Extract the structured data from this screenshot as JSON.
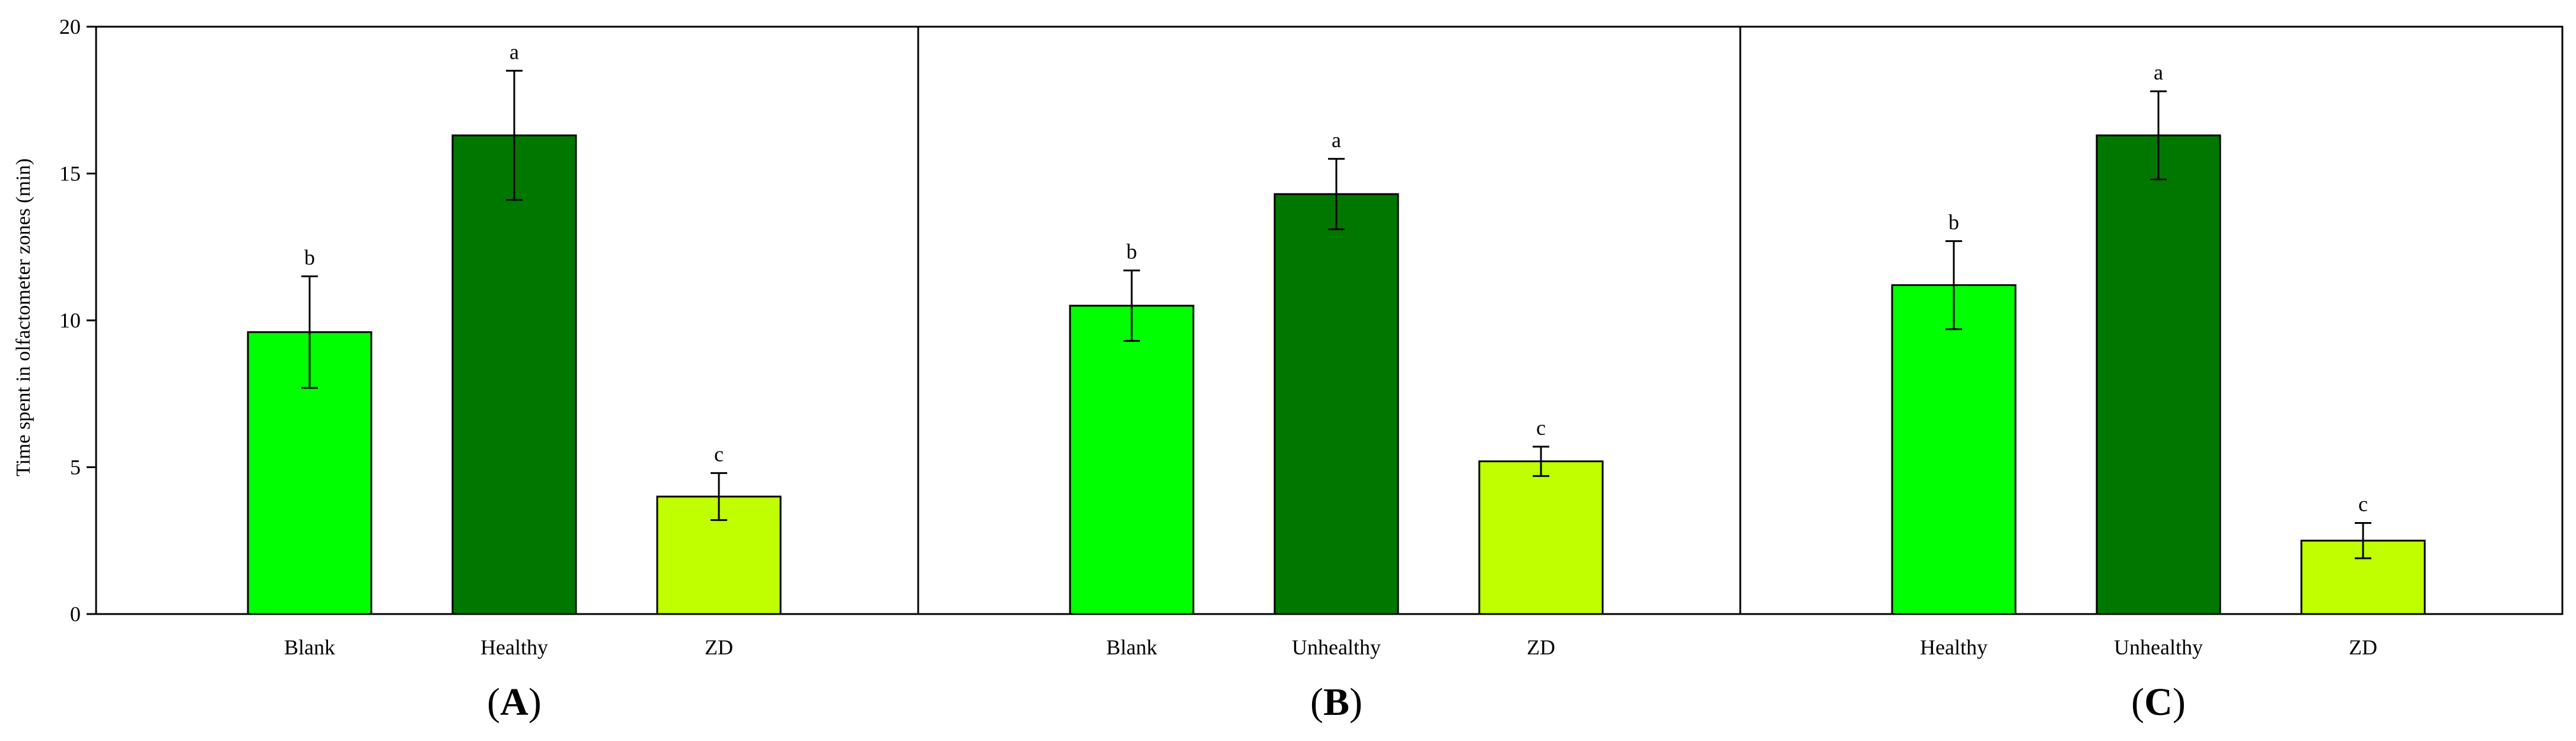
{
  "chart_data": {
    "type": "bar",
    "ylabel": "Time spent in olfactometer zones (min)",
    "ylim": [
      0,
      20
    ],
    "yticks": [
      0,
      5,
      10,
      15,
      20
    ],
    "grid": false,
    "error_bars": true,
    "panels": [
      {
        "label": "A",
        "categories": [
          "Blank",
          "Healthy",
          "ZD"
        ],
        "values": [
          9.6,
          16.3,
          4.0
        ],
        "errors": [
          1.9,
          2.2,
          0.8
        ],
        "significance": [
          "b",
          "a",
          "c"
        ],
        "colors": [
          "#00ff00",
          "#007800",
          "#c0ff00"
        ]
      },
      {
        "label": "B",
        "categories": [
          "Blank",
          "Unhealthy",
          "ZD"
        ],
        "values": [
          10.5,
          14.3,
          5.2
        ],
        "errors": [
          1.2,
          1.2,
          0.5
        ],
        "significance": [
          "b",
          "a",
          "c"
        ],
        "colors": [
          "#00ff00",
          "#007800",
          "#c0ff00"
        ]
      },
      {
        "label": "C",
        "categories": [
          "Healthy",
          "Unhealthy",
          "ZD"
        ],
        "values": [
          11.2,
          16.3,
          2.5
        ],
        "errors": [
          1.5,
          1.5,
          0.6
        ],
        "significance": [
          "b",
          "a",
          "c"
        ],
        "colors": [
          "#00ff00",
          "#007800",
          "#c0ff00"
        ]
      }
    ]
  }
}
